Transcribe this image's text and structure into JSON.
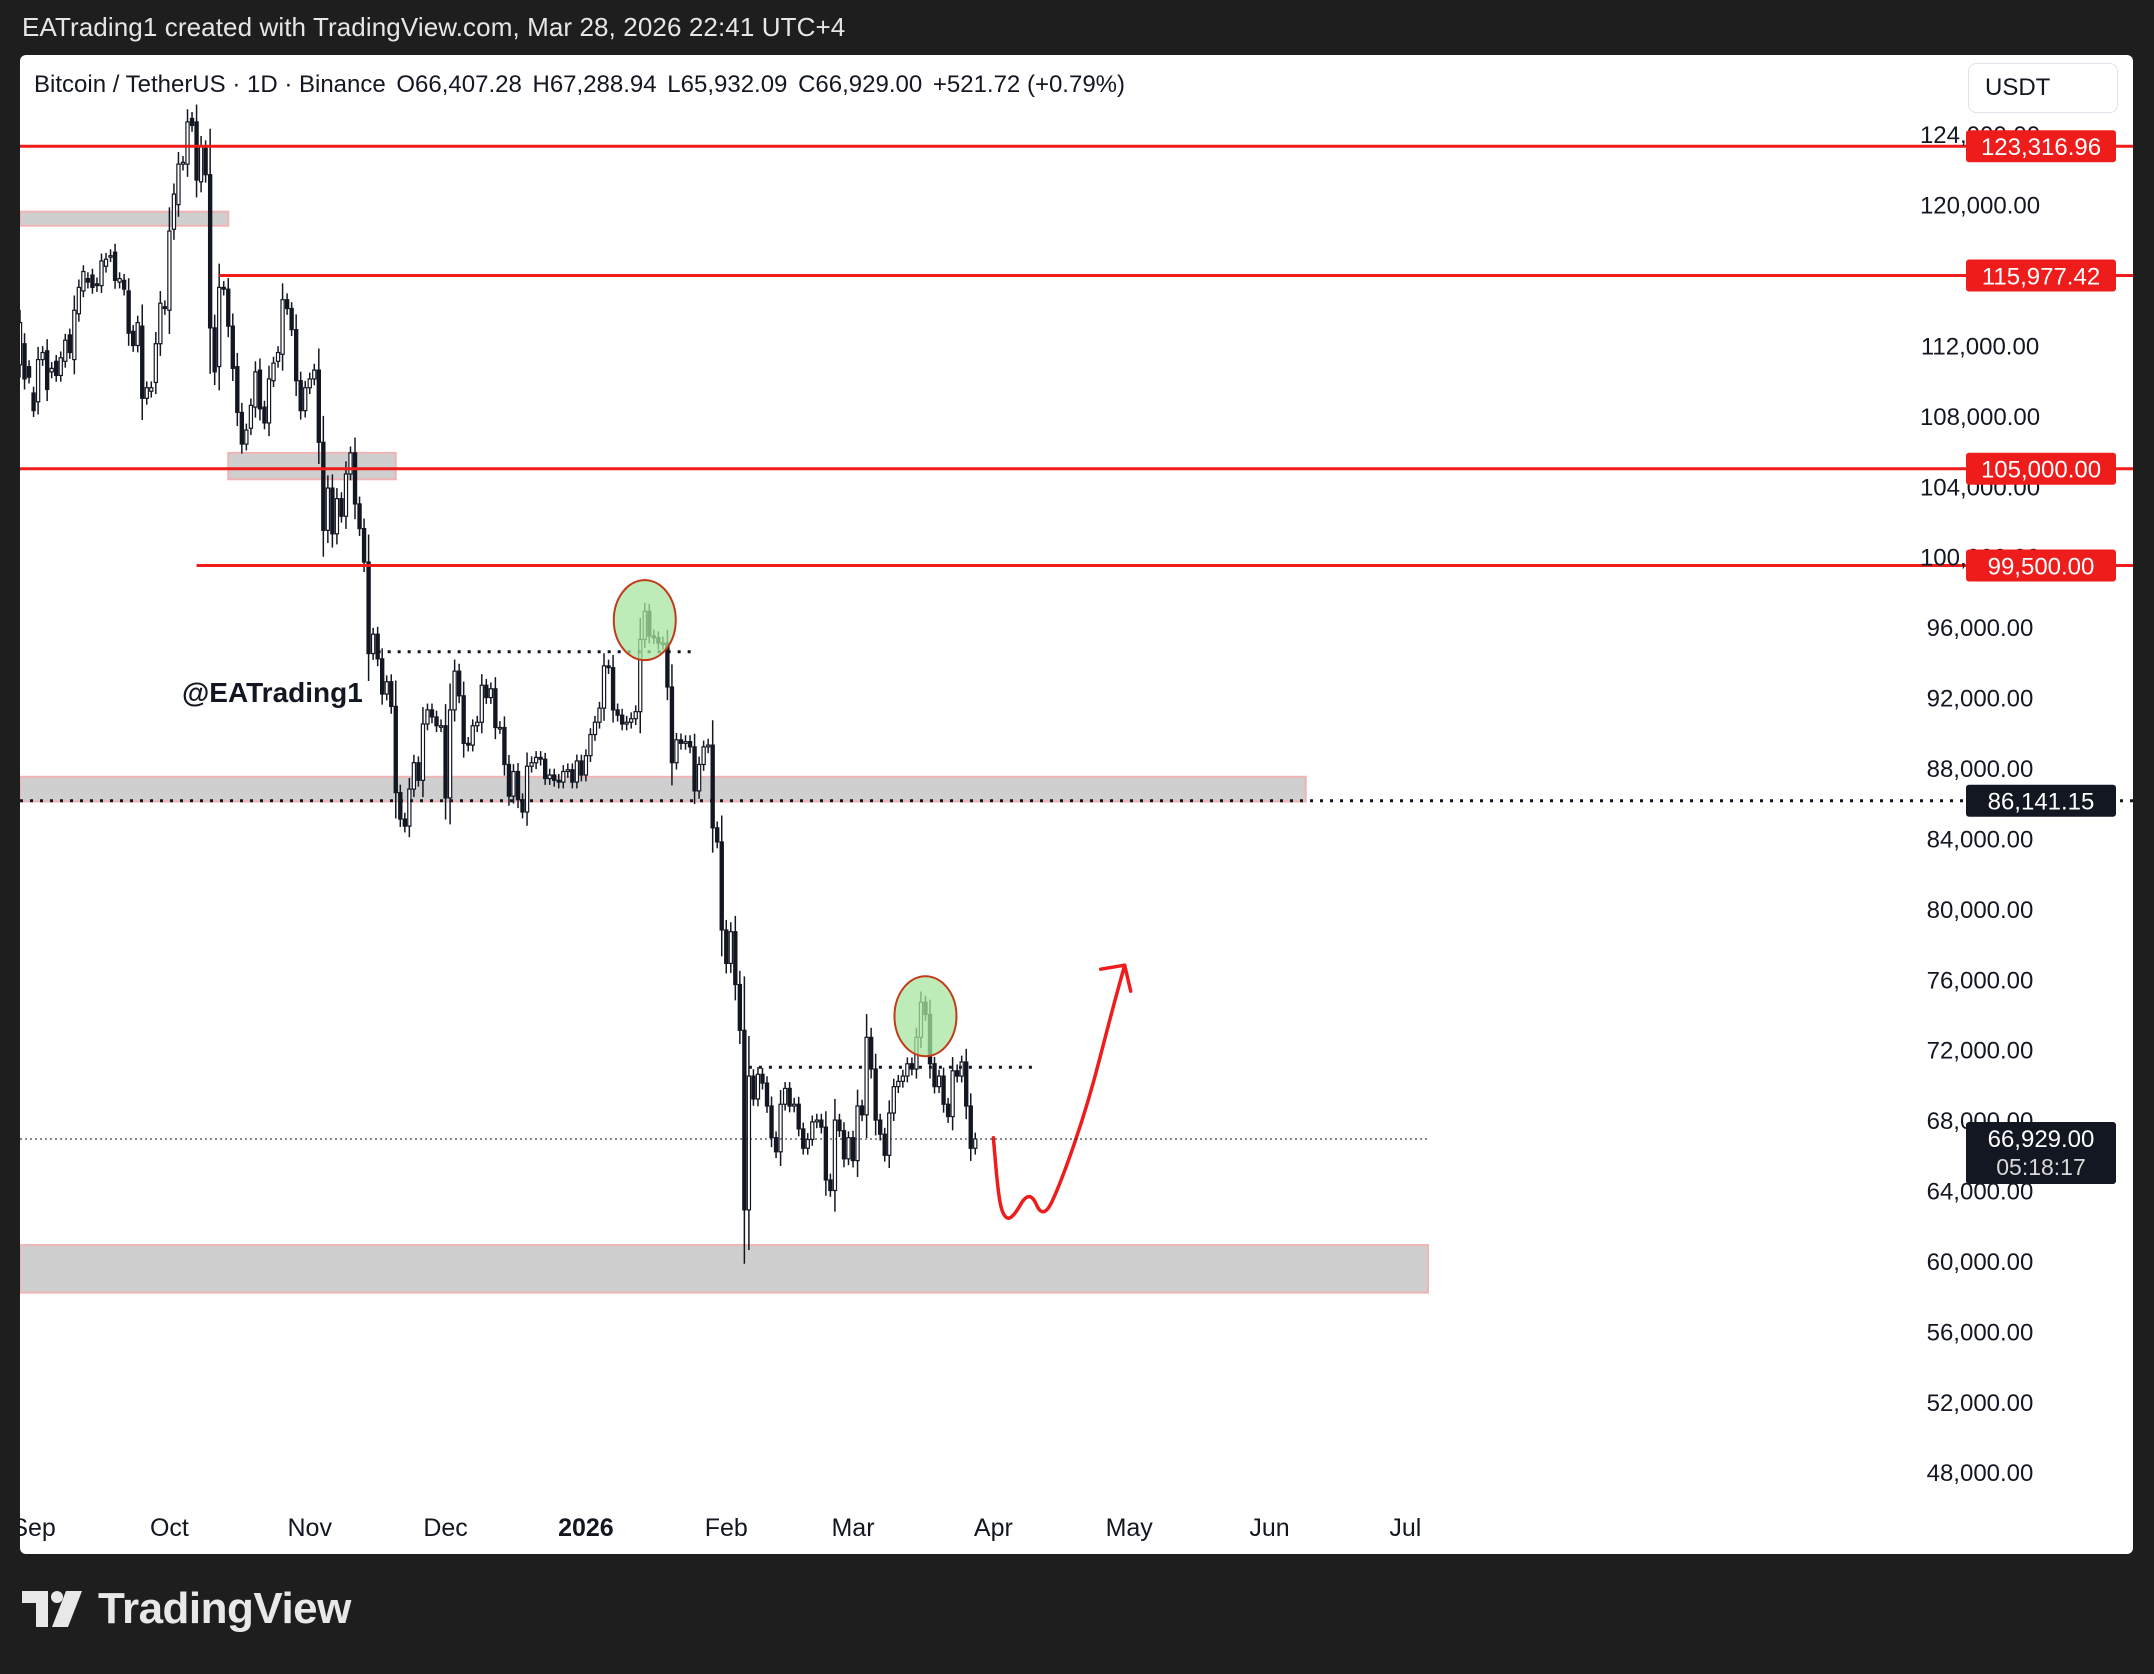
{
  "caption": "EATrading1 created with TradingView.com, Mar 28, 2026 22:41 UTC+4",
  "header": {
    "symbol": "Bitcoin / TetherUS · 1D · Binance",
    "open": "O66,407.28",
    "high": "H67,288.94",
    "low": "L65,932.09",
    "close": "C66,929.00",
    "change": "+521.72 (+0.79%)"
  },
  "currency": "USDT",
  "handle": "@EATrading1",
  "brand": "TradingView",
  "colors": {
    "line": "#ef1c1c",
    "zone": "#cfcfcf",
    "zone_border": "#f0b4b4",
    "candle": "#131722",
    "highlight_fill": "#a8e6a0",
    "highlight_stroke": "#c23a1a",
    "tag_red": "#ef1c1c",
    "tag_dark": "#131722"
  },
  "chart_data": {
    "type": "candlestick",
    "y_axis_ticks": [
      "48,000.00",
      "52,000.00",
      "56,000.00",
      "60,000.00",
      "64,000.00",
      "68,000.00",
      "72,000.00",
      "76,000.00",
      "80,000.00",
      "84,000.00",
      "88,000.00",
      "92,000.00",
      "96,000.00",
      "100,000.00",
      "104,000.00",
      "108,000.00",
      "112,000.00",
      "120,000.00",
      "124,000.00"
    ],
    "x_axis_labels": [
      {
        "label": "Sep",
        "date": "2025-09-01"
      },
      {
        "label": "Oct",
        "date": "2025-10-01"
      },
      {
        "label": "Nov",
        "date": "2025-11-01"
      },
      {
        "label": "Dec",
        "date": "2025-12-01"
      },
      {
        "label": "2026",
        "date": "2026-01-01",
        "bold": true
      },
      {
        "label": "Feb",
        "date": "2026-02-01"
      },
      {
        "label": "Mar",
        "date": "2026-03-01"
      },
      {
        "label": "Apr",
        "date": "2026-04-01"
      },
      {
        "label": "May",
        "date": "2026-05-01"
      },
      {
        "label": "Jun",
        "date": "2026-06-01"
      },
      {
        "label": "Jul",
        "date": "2026-07-01"
      }
    ],
    "x_range": [
      "2025-08-29",
      "2026-07-06"
    ],
    "y_range": [
      45000,
      128500
    ],
    "last_price": {
      "value": 66929.0,
      "label": "66,929.00",
      "countdown": "05:18:17"
    },
    "horizontal_levels": [
      {
        "value": 123316.96,
        "label": "123,316.96",
        "from": "2025-08-29",
        "style": "solid"
      },
      {
        "value": 115977.42,
        "label": "115,977.42",
        "from": "2025-10-12",
        "style": "solid"
      },
      {
        "value": 105000.0,
        "label": "105,000.00",
        "from": "2025-08-29",
        "style": "solid"
      },
      {
        "value": 99500.0,
        "label": "99,500.00",
        "from": "2025-10-07",
        "style": "solid"
      },
      {
        "value": 86141.15,
        "label": "86,141.15",
        "from": "2025-08-29",
        "style": "dotted"
      }
    ],
    "zones": [
      {
        "from": "2025-08-29",
        "to": "2025-10-14",
        "low": 118800,
        "high": 119600
      },
      {
        "from": "2025-10-14",
        "to": "2025-11-20",
        "low": 104400,
        "high": 105900
      },
      {
        "from": "2025-08-29",
        "to": "2026-06-09",
        "low": 86100,
        "high": 87500
      },
      {
        "from": "2025-08-29",
        "to": "2026-07-06",
        "low": 58200,
        "high": 60900
      }
    ],
    "range_lines": [
      {
        "from": "2025-11-16",
        "to": "2026-01-25",
        "value": 94600
      },
      {
        "from": "2026-02-06",
        "to": "2026-04-11",
        "value": 71000
      }
    ],
    "highlights": [
      {
        "date": "2026-01-14",
        "value": 96400
      },
      {
        "date": "2026-03-17",
        "value": 73900
      }
    ],
    "projection": [
      {
        "date": "2026-04-01",
        "value": 67000
      },
      {
        "date": "2026-04-02",
        "value": 64000
      },
      {
        "date": "2026-04-03",
        "value": 62600
      },
      {
        "date": "2026-04-05",
        "value": 62300
      },
      {
        "date": "2026-04-09",
        "value": 64100
      },
      {
        "date": "2026-04-12",
        "value": 62300
      },
      {
        "date": "2026-04-16",
        "value": 64500
      },
      {
        "date": "2026-04-22",
        "value": 69000
      },
      {
        "date": "2026-04-27",
        "value": 74000
      },
      {
        "date": "2026-04-30",
        "value": 76800
      }
    ],
    "candles": [
      [
        "2025-08-29",
        110900,
        113300
      ],
      [
        "2025-08-30",
        112100,
        110100
      ],
      [
        "2025-08-31",
        110800,
        110200
      ],
      [
        "2025-09-01",
        109300,
        108300
      ],
      [
        "2025-09-02",
        108800,
        111200
      ],
      [
        "2025-09-03",
        111200,
        111600
      ],
      [
        "2025-09-04",
        111700,
        109500
      ],
      [
        "2025-09-05",
        110500,
        110700
      ],
      [
        "2025-09-06",
        111100,
        110300
      ],
      [
        "2025-09-07",
        110300,
        111300
      ],
      [
        "2025-09-08",
        111100,
        112300
      ],
      [
        "2025-09-09",
        112600,
        111600
      ],
      [
        "2025-09-10",
        111200,
        114000
      ],
      [
        "2025-09-11",
        113800,
        115300
      ],
      [
        "2025-09-12",
        115100,
        116200
      ],
      [
        "2025-09-13",
        115800,
        115600
      ],
      [
        "2025-09-14",
        116000,
        115300
      ],
      [
        "2025-09-15",
        115500,
        115400
      ],
      [
        "2025-09-16",
        115400,
        116800
      ],
      [
        "2025-09-17",
        116500,
        116900
      ],
      [
        "2025-09-18",
        117100,
        117100
      ],
      [
        "2025-09-19",
        117300,
        115700
      ],
      [
        "2025-09-20",
        115600,
        115800
      ],
      [
        "2025-09-21",
        115700,
        115200
      ],
      [
        "2025-09-22",
        115100,
        112700
      ],
      [
        "2025-09-23",
        112800,
        112000
      ],
      [
        "2025-09-24",
        112000,
        113300
      ],
      [
        "2025-09-25",
        113100,
        109000
      ],
      [
        "2025-09-26",
        109000,
        109600
      ],
      [
        "2025-09-27",
        109400,
        109600
      ],
      [
        "2025-09-28",
        109900,
        112100
      ],
      [
        "2025-09-29",
        112100,
        114400
      ],
      [
        "2025-09-30",
        114200,
        114100
      ],
      [
        "2025-10-01",
        114000,
        118500
      ],
      [
        "2025-10-02",
        118600,
        120600
      ],
      [
        "2025-10-03",
        120000,
        122300
      ],
      [
        "2025-10-04",
        122300,
        122400
      ],
      [
        "2025-10-05",
        122300,
        124700
      ],
      [
        "2025-10-06",
        124900,
        124500
      ],
      [
        "2025-10-07",
        124700,
        121400
      ],
      [
        "2025-10-08",
        121300,
        123300
      ],
      [
        "2025-10-09",
        123200,
        121700
      ],
      [
        "2025-10-10",
        121700,
        113000
      ],
      [
        "2025-10-11",
        113000,
        110500
      ],
      [
        "2025-10-12",
        110800,
        115300
      ],
      [
        "2025-10-13",
        115300,
        115200
      ],
      [
        "2025-10-14",
        115200,
        113100
      ],
      [
        "2025-10-15",
        113100,
        110700
      ],
      [
        "2025-10-16",
        110800,
        108200
      ],
      [
        "2025-10-17",
        108200,
        106400
      ],
      [
        "2025-10-18",
        106400,
        107200
      ],
      [
        "2025-10-19",
        107300,
        108600
      ],
      [
        "2025-10-20",
        108500,
        110500
      ],
      [
        "2025-10-21",
        110600,
        108400
      ],
      [
        "2025-10-22",
        108500,
        107600
      ],
      [
        "2025-10-23",
        107600,
        110100
      ],
      [
        "2025-10-24",
        110000,
        111000
      ],
      [
        "2025-10-25",
        111100,
        111600
      ],
      [
        "2025-10-26",
        111500,
        114600
      ],
      [
        "2025-10-27",
        114600,
        114100
      ],
      [
        "2025-10-28",
        114100,
        112900
      ],
      [
        "2025-10-29",
        112900,
        110000
      ],
      [
        "2025-10-30",
        110000,
        108300
      ],
      [
        "2025-10-31",
        108300,
        109600
      ],
      [
        "2025-11-01",
        109600,
        110100
      ],
      [
        "2025-11-02",
        110100,
        110600
      ],
      [
        "2025-11-03",
        110600,
        106500
      ],
      [
        "2025-11-04",
        106500,
        101500
      ],
      [
        "2025-11-05",
        101500,
        103900
      ],
      [
        "2025-11-06",
        103900,
        101300
      ],
      [
        "2025-11-07",
        101300,
        103300
      ],
      [
        "2025-11-08",
        103300,
        102300
      ],
      [
        "2025-11-09",
        102300,
        104700
      ],
      [
        "2025-11-10",
        104700,
        105900
      ],
      [
        "2025-11-11",
        105900,
        103000
      ],
      [
        "2025-11-12",
        103000,
        101600
      ],
      [
        "2025-11-13",
        101600,
        99700
      ],
      [
        "2025-11-14",
        99700,
        94500
      ],
      [
        "2025-11-15",
        94500,
        95600
      ],
      [
        "2025-11-16",
        95600,
        94200
      ],
      [
        "2025-11-17",
        94200,
        92200
      ],
      [
        "2025-11-18",
        92200,
        92900
      ],
      [
        "2025-11-19",
        92900,
        91500
      ],
      [
        "2025-11-20",
        91500,
        86600
      ],
      [
        "2025-11-21",
        86600,
        85100
      ],
      [
        "2025-11-22",
        85100,
        84700
      ],
      [
        "2025-11-23",
        84700,
        86800
      ],
      [
        "2025-11-24",
        86800,
        88300
      ],
      [
        "2025-11-25",
        88300,
        87300
      ],
      [
        "2025-11-26",
        87300,
        90500
      ],
      [
        "2025-11-27",
        90500,
        91300
      ],
      [
        "2025-11-28",
        91300,
        90900
      ],
      [
        "2025-11-29",
        90900,
        90400
      ],
      [
        "2025-11-30",
        90400,
        90400
      ],
      [
        "2025-12-01",
        90400,
        86300
      ],
      [
        "2025-12-02",
        86300,
        91300
      ],
      [
        "2025-12-03",
        91300,
        93500
      ],
      [
        "2025-12-04",
        93500,
        92100
      ],
      [
        "2025-12-05",
        92100,
        89400
      ],
      [
        "2025-12-06",
        89400,
        89300
      ],
      [
        "2025-12-07",
        89300,
        90400
      ],
      [
        "2025-12-08",
        90400,
        90600
      ],
      [
        "2025-12-09",
        90600,
        92700
      ],
      [
        "2025-12-10",
        92700,
        92000
      ],
      [
        "2025-12-11",
        92000,
        92500
      ],
      [
        "2025-12-12",
        92500,
        90300
      ],
      [
        "2025-12-13",
        90300,
        90300
      ],
      [
        "2025-12-14",
        90300,
        88200
      ],
      [
        "2025-12-15",
        88200,
        86400
      ],
      [
        "2025-12-16",
        86400,
        87800
      ],
      [
        "2025-12-17",
        87800,
        86200
      ],
      [
        "2025-12-18",
        86200,
        85500
      ],
      [
        "2025-12-19",
        85500,
        88100
      ],
      [
        "2025-12-20",
        88100,
        88300
      ],
      [
        "2025-12-21",
        88300,
        88600
      ],
      [
        "2025-12-22",
        88600,
        88500
      ],
      [
        "2025-12-23",
        88500,
        87400
      ],
      [
        "2025-12-24",
        87400,
        87600
      ],
      [
        "2025-12-25",
        87600,
        87300
      ],
      [
        "2025-12-26",
        87300,
        87200
      ],
      [
        "2025-12-27",
        87200,
        87800
      ],
      [
        "2025-12-28",
        87800,
        87900
      ],
      [
        "2025-12-29",
        87900,
        87200
      ],
      [
        "2025-12-30",
        87200,
        88400
      ],
      [
        "2025-12-31",
        88400,
        87600
      ],
      [
        "2026-01-01",
        87600,
        88700
      ],
      [
        "2026-01-02",
        88700,
        89900
      ],
      [
        "2026-01-03",
        89900,
        90600
      ],
      [
        "2026-01-04",
        90600,
        91400
      ],
      [
        "2026-01-05",
        91400,
        93800
      ],
      [
        "2026-01-06",
        93800,
        93700
      ],
      [
        "2026-01-07",
        93700,
        91300
      ],
      [
        "2026-01-08",
        91300,
        91000
      ],
      [
        "2026-01-09",
        91000,
        90500
      ],
      [
        "2026-01-10",
        90500,
        90600
      ],
      [
        "2026-01-11",
        90600,
        90800
      ],
      [
        "2026-01-12",
        90800,
        91200
      ],
      [
        "2026-01-13",
        91200,
        95300
      ],
      [
        "2026-01-14",
        95300,
        96900
      ],
      [
        "2026-01-15",
        96900,
        95500
      ],
      [
        "2026-01-16",
        95500,
        95400
      ],
      [
        "2026-01-17",
        95400,
        95100
      ],
      [
        "2026-01-18",
        95100,
        95100
      ],
      [
        "2026-01-19",
        95100,
        92600
      ],
      [
        "2026-01-20",
        92600,
        88300
      ],
      [
        "2026-01-21",
        88300,
        89600
      ],
      [
        "2026-01-22",
        89600,
        89400
      ],
      [
        "2026-01-23",
        89400,
        89500
      ],
      [
        "2026-01-24",
        89500,
        89200
      ],
      [
        "2026-01-25",
        89200,
        86700
      ],
      [
        "2026-01-26",
        86700,
        88200
      ],
      [
        "2026-01-27",
        88200,
        89200
      ],
      [
        "2026-01-28",
        89200,
        89300
      ],
      [
        "2026-01-29",
        89300,
        84600
      ],
      [
        "2026-01-30",
        84600,
        83800
      ],
      [
        "2026-01-31",
        83800,
        78800
      ],
      [
        "2026-02-01",
        78800,
        76900
      ],
      [
        "2026-02-02",
        76900,
        78700
      ],
      [
        "2026-02-03",
        78700,
        75700
      ],
      [
        "2026-02-04",
        75700,
        73100
      ],
      [
        "2026-02-05",
        73100,
        62900
      ],
      [
        "2026-02-06",
        62900,
        70500
      ],
      [
        "2026-02-07",
        70500,
        69200
      ],
      [
        "2026-02-08",
        69200,
        70600
      ],
      [
        "2026-02-09",
        70600,
        70100
      ],
      [
        "2026-02-10",
        70100,
        68800
      ],
      [
        "2026-02-11",
        68800,
        67000
      ],
      [
        "2026-02-12",
        67000,
        66200
      ],
      [
        "2026-02-13",
        66200,
        68900
      ],
      [
        "2026-02-14",
        68900,
        69800
      ],
      [
        "2026-02-15",
        69800,
        68800
      ],
      [
        "2026-02-16",
        68800,
        68900
      ],
      [
        "2026-02-17",
        68900,
        67500
      ],
      [
        "2026-02-18",
        67500,
        66400
      ],
      [
        "2026-02-19",
        66400,
        66900
      ],
      [
        "2026-02-20",
        66900,
        67900
      ],
      [
        "2026-02-21",
        67900,
        68000
      ],
      [
        "2026-02-22",
        68000,
        67600
      ],
      [
        "2026-02-23",
        67600,
        64600
      ],
      [
        "2026-02-24",
        64600,
        64000
      ],
      [
        "2026-02-25",
        64000,
        68000
      ],
      [
        "2026-02-26",
        68000,
        67400
      ],
      [
        "2026-02-27",
        67400,
        65800
      ],
      [
        "2026-02-28",
        65800,
        67000
      ],
      [
        "2026-03-01",
        67000,
        65700
      ],
      [
        "2026-03-02",
        65700,
        68800
      ],
      [
        "2026-03-03",
        68800,
        68300
      ],
      [
        "2026-03-04",
        68300,
        72700
      ],
      [
        "2026-03-05",
        72700,
        70900
      ],
      [
        "2026-03-06",
        70900,
        68000
      ],
      [
        "2026-03-07",
        68000,
        67200
      ],
      [
        "2026-03-08",
        67200,
        66000
      ],
      [
        "2026-03-09",
        66000,
        68400
      ],
      [
        "2026-03-10",
        68400,
        69900
      ],
      [
        "2026-03-11",
        69900,
        70200
      ],
      [
        "2026-03-12",
        70200,
        70500
      ],
      [
        "2026-03-13",
        70500,
        71200
      ],
      [
        "2026-03-14",
        71200,
        70900
      ],
      [
        "2026-03-15",
        70900,
        72700
      ],
      [
        "2026-03-16",
        72700,
        74700
      ],
      [
        "2026-03-17",
        74700,
        74000
      ],
      [
        "2026-03-18",
        74000,
        71200
      ],
      [
        "2026-03-19",
        71200,
        69900
      ],
      [
        "2026-03-20",
        69900,
        70500
      ],
      [
        "2026-03-21",
        70500,
        68900
      ],
      [
        "2026-03-22",
        68900,
        68200
      ],
      [
        "2026-03-23",
        68200,
        70800
      ],
      [
        "2026-03-24",
        70800,
        70500
      ],
      [
        "2026-03-25",
        70500,
        71300
      ],
      [
        "2026-03-26",
        71300,
        68800
      ],
      [
        "2026-03-27",
        68800,
        66400
      ],
      [
        "2026-03-28",
        66400,
        66929
      ]
    ]
  }
}
